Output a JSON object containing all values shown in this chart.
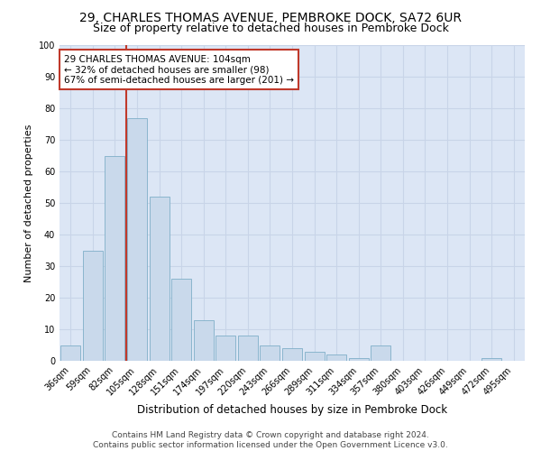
{
  "title": "29, CHARLES THOMAS AVENUE, PEMBROKE DOCK, SA72 6UR",
  "subtitle": "Size of property relative to detached houses in Pembroke Dock",
  "xlabel": "Distribution of detached houses by size in Pembroke Dock",
  "ylabel": "Number of detached properties",
  "categories": [
    "36sqm",
    "59sqm",
    "82sqm",
    "105sqm",
    "128sqm",
    "151sqm",
    "174sqm",
    "197sqm",
    "220sqm",
    "243sqm",
    "266sqm",
    "289sqm",
    "311sqm",
    "334sqm",
    "357sqm",
    "380sqm",
    "403sqm",
    "426sqm",
    "449sqm",
    "472sqm",
    "495sqm"
  ],
  "values": [
    5,
    35,
    65,
    77,
    52,
    26,
    13,
    8,
    8,
    5,
    4,
    3,
    2,
    1,
    5,
    0,
    0,
    0,
    0,
    1,
    0
  ],
  "bar_color": "#c9d9eb",
  "bar_edge_color": "#7fafc8",
  "vline_color": "#c0392b",
  "vline_pos": 2.5,
  "annotation_text": "29 CHARLES THOMAS AVENUE: 104sqm\n← 32% of detached houses are smaller (98)\n67% of semi-detached houses are larger (201) →",
  "annotation_box_color": "#ffffff",
  "annotation_box_edge": "#c0392b",
  "ylim": [
    0,
    100
  ],
  "yticks": [
    0,
    10,
    20,
    30,
    40,
    50,
    60,
    70,
    80,
    90,
    100
  ],
  "grid_color": "#c8d4e8",
  "background_color": "#dce6f5",
  "footer_text": "Contains HM Land Registry data © Crown copyright and database right 2024.\nContains public sector information licensed under the Open Government Licence v3.0.",
  "title_fontsize": 10,
  "subtitle_fontsize": 9,
  "xlabel_fontsize": 8.5,
  "ylabel_fontsize": 8,
  "tick_fontsize": 7,
  "annotation_fontsize": 7.5,
  "footer_fontsize": 6.5
}
